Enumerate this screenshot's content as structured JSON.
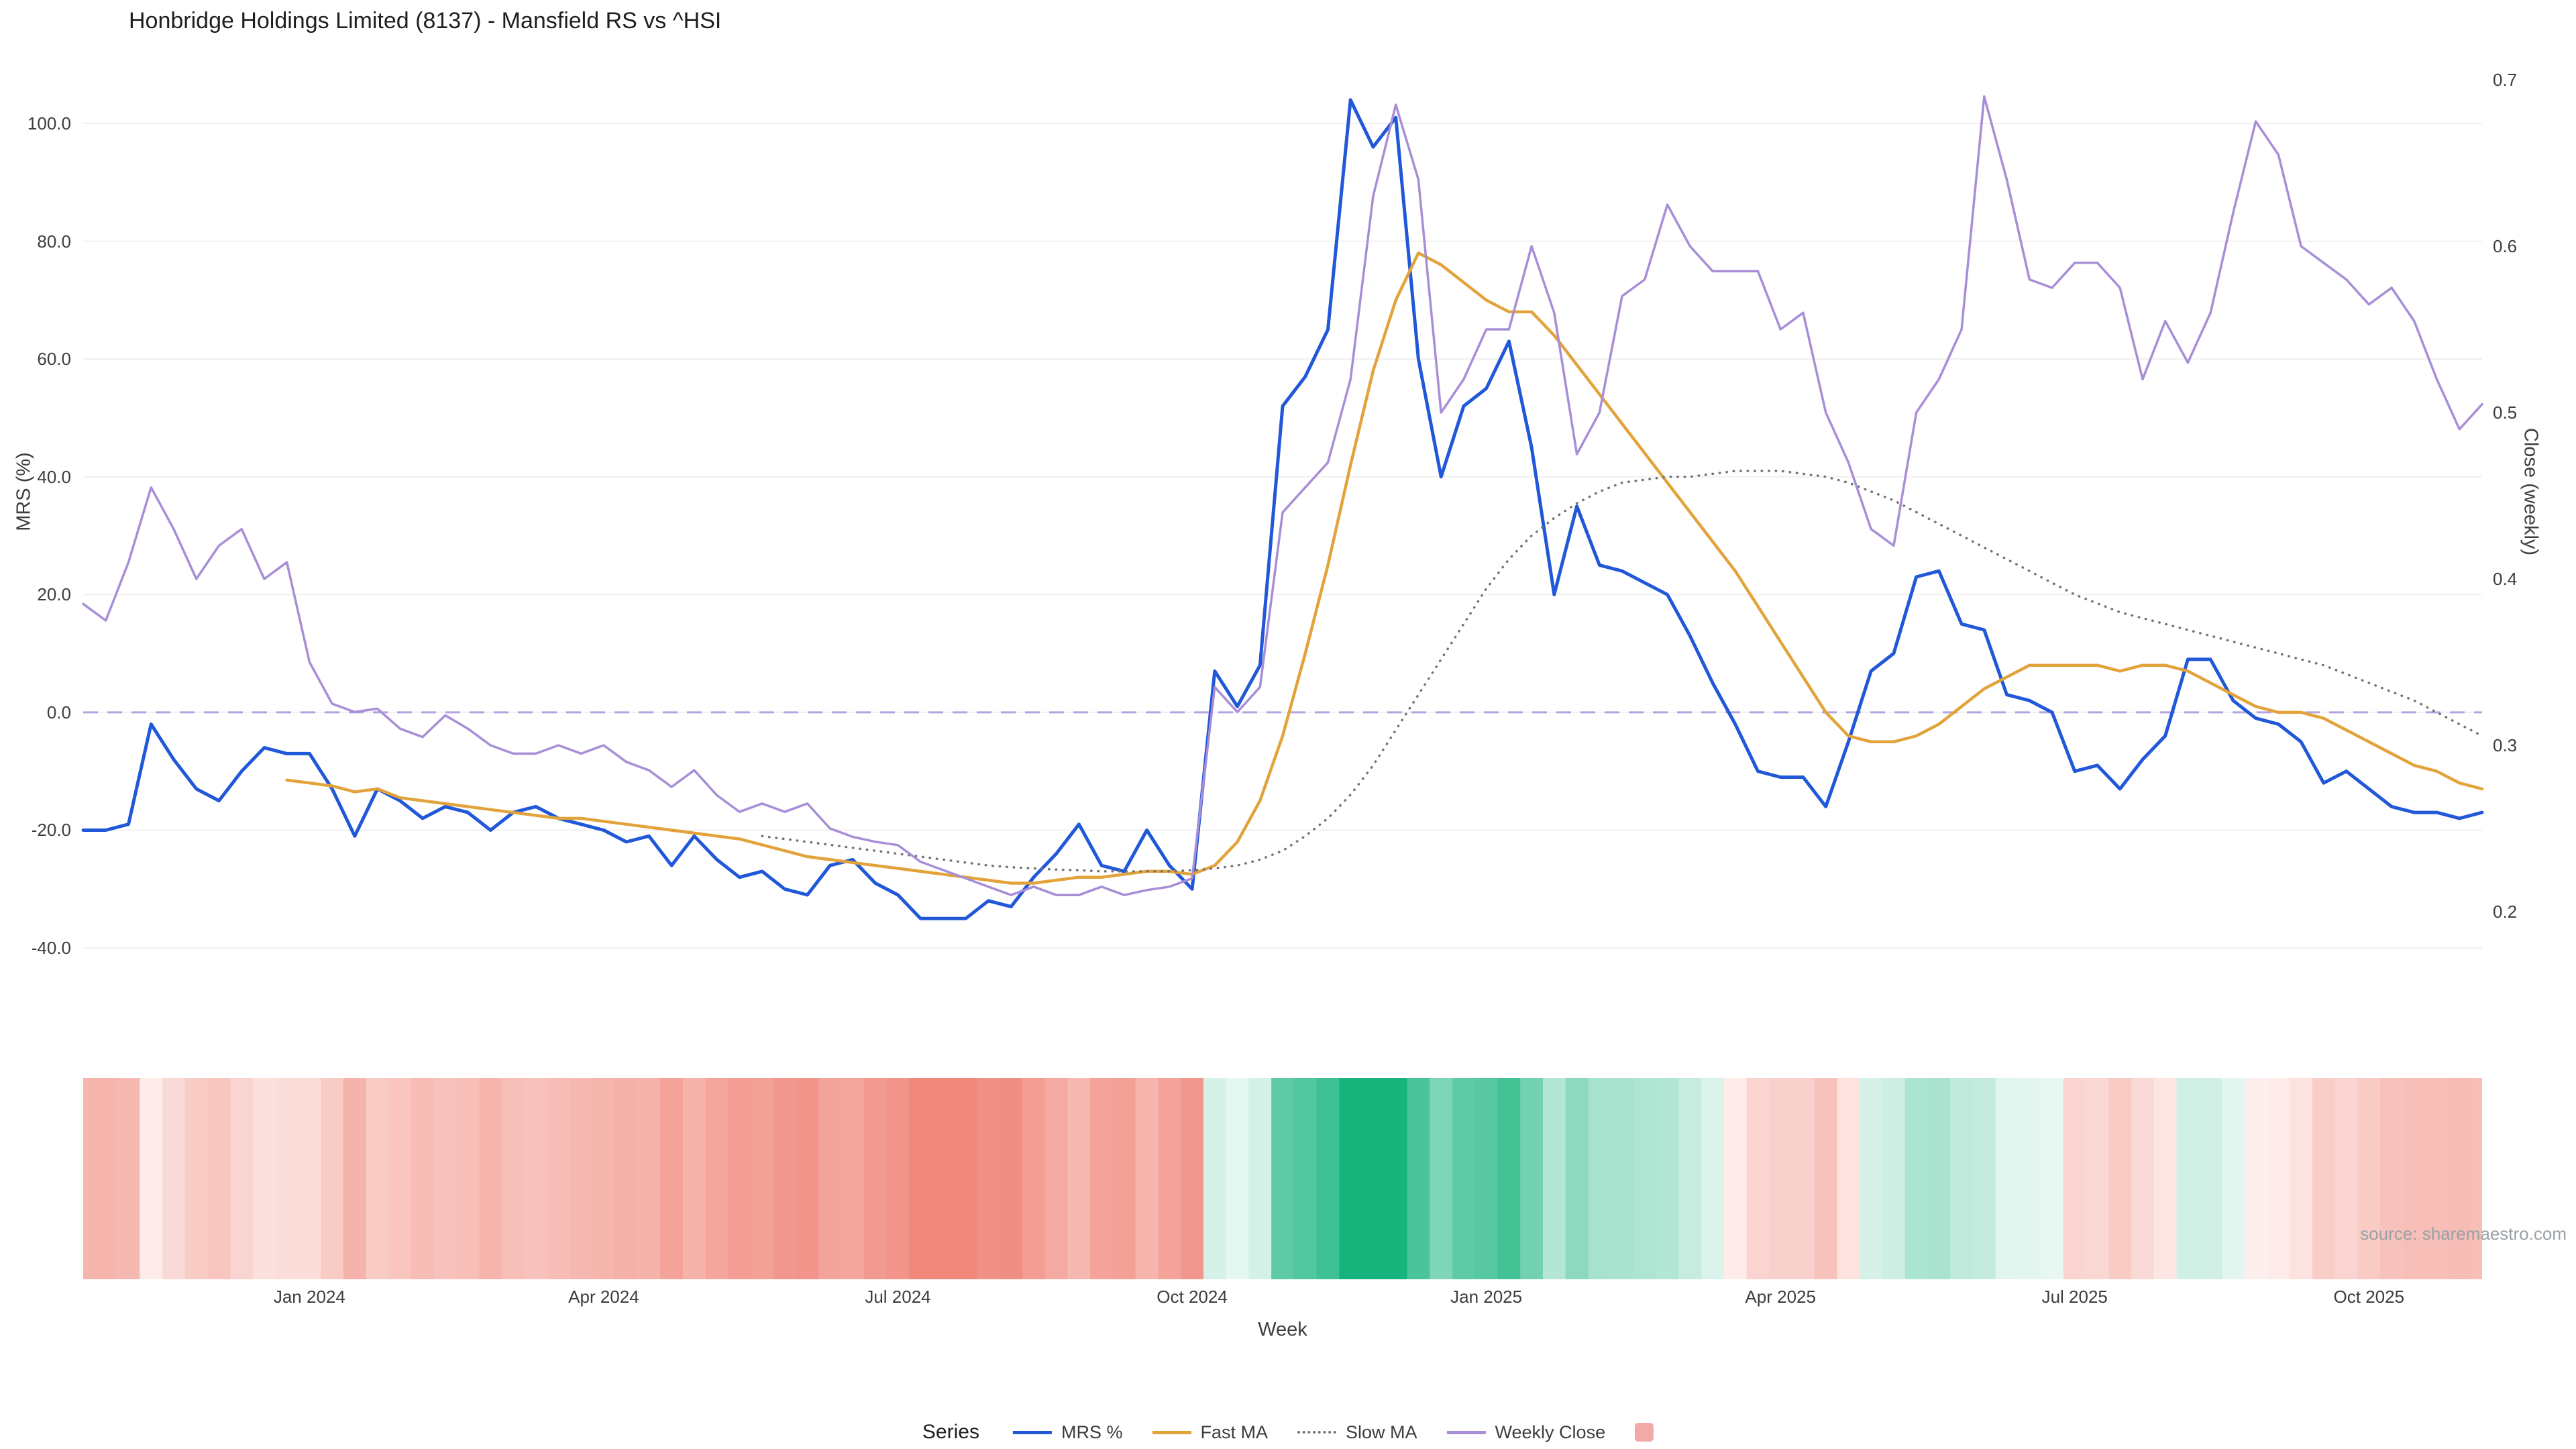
{
  "title": "Honbridge Holdings Limited (8137) - Mansfield RS vs ^HSI",
  "source": "source: sharemaestro.com",
  "axes": {
    "left_label": "MRS (%)",
    "right_label": "Close (weekly)",
    "x_label": "Week",
    "left_ticks": [
      "100.0",
      "80.0",
      "60.0",
      "40.0",
      "20.0",
      "0.0",
      "-20.0",
      "-40.0"
    ],
    "right_ticks": [
      "0.7",
      "0.6",
      "0.5",
      "0.4",
      "0.3",
      "0.2"
    ],
    "x_ticks": [
      "Jan 2024",
      "Apr 2024",
      "Jul 2024",
      "Oct 2024",
      "Jan 2025",
      "Apr 2025",
      "Jul 2025",
      "Oct 2025"
    ]
  },
  "legend": {
    "label": "Series",
    "items": [
      "MRS %",
      "Fast MA",
      "Slow MA",
      "Weekly Close"
    ]
  },
  "colors": {
    "mrs": "#2158d8",
    "fast_ma": "#e2a33b",
    "slow_ma": "#737373",
    "weekly_close": "#a78ed7",
    "zero_line": "#b4a3e0",
    "heatmap_positive": "#16b37d",
    "heatmap_negative": "#ef7f72",
    "legend_swatch": "#f4a9a9",
    "gridline": "#f0f0f0"
  },
  "chart_data": {
    "type": "line",
    "title": "Honbridge Holdings Limited (8137) - Mansfield RS vs ^HSI",
    "x_axis": {
      "label": "Week",
      "unit": "weekly (index 0 = late Oct 2023)",
      "tick_positions": [
        10,
        23,
        36,
        49,
        62,
        75,
        88,
        101
      ],
      "tick_labels": [
        "Jan 2024",
        "Apr 2024",
        "Jul 2024",
        "Oct 2024",
        "Jan 2025",
        "Apr 2025",
        "Jul 2025",
        "Oct 2025"
      ]
    },
    "y_left_axis": {
      "label": "MRS (%)",
      "ticks": [
        100,
        80,
        60,
        40,
        20,
        0,
        -20,
        -40
      ],
      "range": [
        -49,
        110
      ]
    },
    "y_right_axis": {
      "label": "Close (weekly)",
      "ticks": [
        0.7,
        0.6,
        0.5,
        0.4,
        0.3,
        0.2
      ],
      "range": [
        0.167,
        0.726
      ]
    },
    "zero_line": {
      "axis": "left",
      "value": 0,
      "style": "dashed",
      "color": "#b4a3e0"
    },
    "legend_position": "bottom-center",
    "grid": "subtle-horizontal",
    "series": [
      {
        "name": "MRS %",
        "axis": "left",
        "color": "#2158d8",
        "style": "solid",
        "width": 5,
        "values": [
          -20,
          -20,
          -19,
          -2,
          -8,
          -13,
          -15,
          -10,
          -6,
          -7,
          -7,
          -13,
          -21,
          -13,
          -15,
          -18,
          -16,
          -17,
          -20,
          -17,
          -16,
          -18,
          -19,
          -20,
          -22,
          -21,
          -26,
          -21,
          -25,
          -28,
          -27,
          -30,
          -31,
          -26,
          -25,
          -29,
          -31,
          -35,
          -35,
          -35,
          -32,
          -33,
          -28,
          -24,
          -19,
          -26,
          -27,
          -20,
          -26,
          -30,
          7,
          1,
          8,
          52,
          57,
          65,
          104,
          96,
          101,
          60,
          40,
          52,
          55,
          63,
          45,
          20,
          35,
          25,
          24,
          22,
          20,
          13,
          5,
          -2,
          -10,
          -11,
          -11,
          -16,
          -5,
          7,
          10,
          23,
          24,
          15,
          14,
          3,
          2,
          0,
          -10,
          -9,
          -13,
          -8,
          -4,
          9,
          9,
          2,
          -1,
          -2,
          -5,
          -12,
          -10,
          -13,
          -16,
          -17,
          -17,
          -18,
          -17
        ]
      },
      {
        "name": "Fast MA",
        "axis": "left",
        "color": "#e2a33b",
        "style": "solid",
        "width": 4.5,
        "values": [
          null,
          null,
          null,
          null,
          null,
          null,
          null,
          null,
          null,
          -11.5,
          -12,
          -12.5,
          -13.5,
          -13,
          -14.5,
          -15,
          -15.5,
          -16,
          -16.5,
          -17,
          -17.5,
          -18,
          -18,
          -18.5,
          -19,
          -19.5,
          -20,
          -20.5,
          -21,
          -21.5,
          -22.5,
          -23.5,
          -24.5,
          -25,
          -25.5,
          -26,
          -26.5,
          -27,
          -27.5,
          -28,
          -28.5,
          -29,
          -29,
          -28.5,
          -28,
          -28,
          -27.5,
          -27,
          -27,
          -27.5,
          -26,
          -22,
          -15,
          -4,
          10,
          25,
          42,
          58,
          70,
          78,
          76,
          73,
          70,
          68,
          68,
          64,
          59,
          54,
          49,
          44,
          39,
          34,
          29,
          24,
          18,
          12,
          6,
          0,
          -4,
          -5,
          -5,
          -4,
          -2,
          1,
          4,
          6,
          8,
          8,
          8,
          8,
          7,
          8,
          8,
          7,
          5,
          3,
          1,
          0,
          0,
          -1,
          -3,
          -5,
          -7,
          -9,
          -10,
          -12,
          -13
        ]
      },
      {
        "name": "Slow MA",
        "axis": "left",
        "color": "#737373",
        "style": "dotted",
        "width": 3.5,
        "values": [
          null,
          null,
          null,
          null,
          null,
          null,
          null,
          null,
          null,
          null,
          null,
          null,
          null,
          null,
          null,
          null,
          null,
          null,
          null,
          null,
          null,
          null,
          null,
          null,
          null,
          null,
          null,
          null,
          null,
          null,
          -21,
          -21.5,
          -22,
          -22.5,
          -23,
          -23.5,
          -24,
          -24.5,
          -25,
          -25.5,
          -26,
          -26.3,
          -26.5,
          -26.7,
          -26.8,
          -27,
          -27,
          -27,
          -27,
          -26.8,
          -26.5,
          -26,
          -25,
          -23.5,
          -21,
          -18,
          -14,
          -9,
          -3,
          3,
          9,
          15,
          21,
          26,
          30,
          33,
          35.5,
          37.5,
          39,
          39.5,
          40,
          40,
          40.5,
          41,
          41,
          41,
          40.5,
          40,
          39,
          37.5,
          36,
          34,
          32,
          30,
          28,
          26,
          24,
          22,
          20,
          18.5,
          17,
          16,
          15,
          14,
          13,
          12,
          11,
          10,
          9,
          8,
          6.5,
          5,
          3.5,
          2,
          0,
          -2,
          -4
        ]
      },
      {
        "name": "Weekly Close",
        "axis": "right",
        "color": "#a78ed7",
        "style": "solid",
        "width": 3.5,
        "values": [
          0.385,
          0.375,
          0.41,
          0.455,
          0.43,
          0.4,
          0.42,
          0.43,
          0.4,
          0.41,
          0.35,
          0.325,
          0.32,
          0.322,
          0.31,
          0.305,
          0.318,
          0.31,
          0.3,
          0.295,
          0.295,
          0.3,
          0.295,
          0.3,
          0.29,
          0.285,
          0.275,
          0.285,
          0.27,
          0.26,
          0.265,
          0.26,
          0.265,
          0.25,
          0.245,
          0.242,
          0.24,
          0.23,
          0.225,
          0.22,
          0.215,
          0.21,
          0.215,
          0.21,
          0.21,
          0.215,
          0.21,
          0.213,
          0.215,
          0.22,
          0.335,
          0.32,
          0.335,
          0.44,
          0.455,
          0.47,
          0.52,
          0.63,
          0.685,
          0.64,
          0.5,
          0.52,
          0.55,
          0.55,
          0.6,
          0.56,
          0.475,
          0.5,
          0.57,
          0.58,
          0.625,
          0.6,
          0.585,
          0.585,
          0.585,
          0.55,
          0.56,
          0.5,
          0.47,
          0.43,
          0.42,
          0.5,
          0.52,
          0.55,
          0.69,
          0.64,
          0.58,
          0.575,
          0.59,
          0.59,
          0.575,
          0.52,
          0.555,
          0.53,
          0.56,
          0.62,
          0.675,
          0.655,
          0.6,
          0.59,
          0.58,
          0.565,
          0.575,
          0.555,
          0.52,
          0.49,
          0.505
        ]
      }
    ],
    "heatmap_strip": {
      "description": "weekly color band derived from MRS % sign/magnitude (red negative, green positive)",
      "source_series": "MRS %",
      "positive_color": "#16b37d",
      "negative_color": "#ef7f72"
    }
  }
}
